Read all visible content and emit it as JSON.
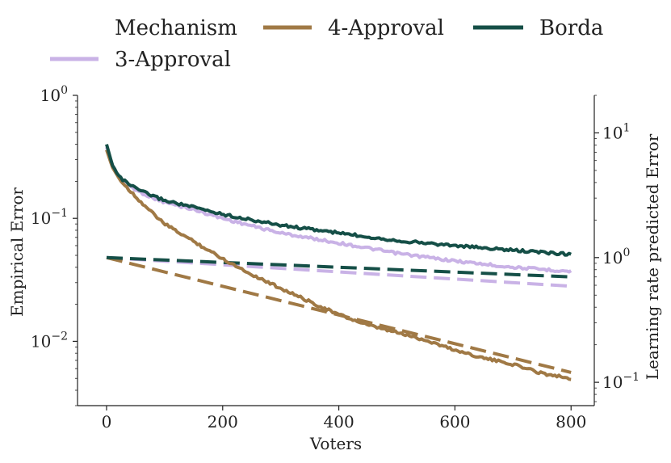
{
  "chart_data": {
    "type": "line",
    "title": "",
    "legend": {
      "title": "Mechanism",
      "placement": "top",
      "entries": [
        {
          "name": "4-Approval",
          "color": "#a07945"
        },
        {
          "name": "Borda",
          "color": "#154f47"
        },
        {
          "name": "3-Approval",
          "color": "#c9b2e6"
        }
      ]
    },
    "xlabel": "Voters",
    "ylabel": "Empirical Error",
    "y2label": "Learning rate predicted Error",
    "xlim": [
      -50,
      840
    ],
    "ylim": [
      0.003,
      1.0
    ],
    "y2lim": [
      0.065,
      20
    ],
    "xscale": "linear",
    "yscale": "log",
    "y2scale": "log",
    "xticks": [
      0,
      200,
      400,
      600,
      800
    ],
    "xtick_labels": [
      "0",
      "200",
      "400",
      "600",
      "800"
    ],
    "yticks": [
      1.0,
      0.1,
      0.01
    ],
    "ytick_labels": [
      "10^0",
      "10^-1",
      "10^-2"
    ],
    "y2ticks": [
      10,
      1,
      0.1
    ],
    "y2tick_labels": [
      "10^1",
      "10^0",
      "10^-1"
    ],
    "series": [
      {
        "name": "3-Approval",
        "axis": "left",
        "style": "solid",
        "color": "#c9b2e6",
        "x": [
          0,
          10,
          25,
          50,
          75,
          100,
          150,
          200,
          250,
          300,
          400,
          500,
          600,
          700,
          800
        ],
        "y": [
          0.38,
          0.27,
          0.21,
          0.17,
          0.15,
          0.135,
          0.118,
          0.1,
          0.087,
          0.076,
          0.063,
          0.052,
          0.045,
          0.04,
          0.037
        ]
      },
      {
        "name": "4-Approval",
        "axis": "left",
        "style": "solid",
        "color": "#a07945",
        "x": [
          0,
          10,
          25,
          50,
          75,
          100,
          150,
          200,
          250,
          300,
          350,
          400,
          450,
          500,
          550,
          600,
          650,
          700,
          750,
          800
        ],
        "y": [
          0.36,
          0.26,
          0.2,
          0.15,
          0.115,
          0.09,
          0.065,
          0.047,
          0.035,
          0.027,
          0.021,
          0.0165,
          0.0135,
          0.0118,
          0.0102,
          0.0085,
          0.0073,
          0.0065,
          0.0055,
          0.005
        ]
      },
      {
        "name": "Borda",
        "axis": "left",
        "style": "solid",
        "color": "#154f47",
        "x": [
          0,
          10,
          25,
          50,
          75,
          100,
          150,
          200,
          250,
          300,
          400,
          500,
          600,
          700,
          800
        ],
        "y": [
          0.4,
          0.27,
          0.21,
          0.175,
          0.155,
          0.14,
          0.123,
          0.108,
          0.097,
          0.088,
          0.076,
          0.066,
          0.06,
          0.055,
          0.051
        ]
      },
      {
        "name": "3-Approval (predicted)",
        "axis": "right",
        "style": "dashed",
        "color": "#c9b2e6",
        "x": [
          0,
          800
        ],
        "y": [
          1.0,
          0.59
        ]
      },
      {
        "name": "4-Approval (predicted)",
        "axis": "right",
        "style": "dashed",
        "color": "#a07945",
        "x": [
          0,
          800
        ],
        "y": [
          1.0,
          0.12
        ]
      },
      {
        "name": "Borda (predicted)",
        "axis": "right",
        "style": "dashed",
        "color": "#154f47",
        "x": [
          0,
          800
        ],
        "y": [
          1.0,
          0.7
        ]
      }
    ]
  }
}
